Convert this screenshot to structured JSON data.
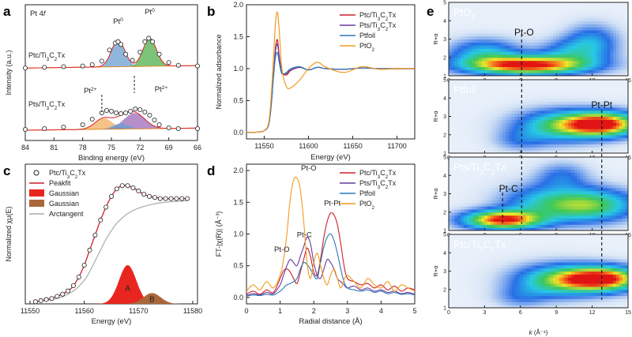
{
  "chart_data": [
    {
      "panel": "a",
      "type": "line",
      "title": "Pt 4f",
      "xlabel": "Binding energy (eV)",
      "ylabel": "Intensity (a.u.)",
      "xlim": [
        84,
        66
      ],
      "x_ticks": [
        "84",
        "81",
        "78",
        "75",
        "72",
        "69",
        "66"
      ],
      "annotations": [
        "Pt0",
        "Pt0",
        "Pt2+",
        "Pt2+"
      ],
      "series": [
        {
          "name": "Ptc/Ti3C2Tx",
          "x": [
            84,
            82,
            80,
            78,
            77,
            76,
            75.2,
            74.6,
            74.3,
            74.0,
            73.5,
            72.8,
            72.0,
            71.5,
            71.1,
            70.7,
            70.0,
            69,
            68,
            66
          ],
          "values": [
            0.52,
            0.53,
            0.54,
            0.55,
            0.57,
            0.62,
            0.78,
            0.88,
            0.9,
            0.86,
            0.72,
            0.63,
            0.75,
            0.9,
            0.95,
            0.9,
            0.72,
            0.6,
            0.56,
            0.55
          ]
        },
        {
          "name": "Pts/Ti3C2Tx",
          "x": [
            84,
            82,
            80,
            78,
            77,
            76,
            75.5,
            75,
            74.5,
            74,
            73.5,
            73,
            72.5,
            72,
            71.5,
            71,
            70.5,
            70,
            69,
            68,
            66
          ],
          "values": [
            0.04,
            0.05,
            0.07,
            0.1,
            0.17,
            0.25,
            0.28,
            0.27,
            0.25,
            0.24,
            0.25,
            0.27,
            0.3,
            0.29,
            0.26,
            0.22,
            0.16,
            0.1,
            0.06,
            0.05,
            0.05
          ]
        }
      ]
    },
    {
      "panel": "b",
      "type": "line",
      "xlabel": "Energy (eV)",
      "ylabel": "Normalized adsorbance",
      "xlim": [
        11530,
        11720
      ],
      "ylim": [
        -0.1,
        2.0
      ],
      "x_ticks": [
        "11550",
        "11600",
        "11650",
        "11700"
      ],
      "y_ticks": [
        "0.0",
        "0.5",
        "1.0",
        "1.5",
        "2.0"
      ],
      "legend": [
        "Ptc/Ti3C2Tx",
        "Pts/Ti3C2Tx",
        "Pt foil",
        "PtO2"
      ],
      "legend_placement": "top-right",
      "x": [
        11530,
        11545,
        11550,
        11555,
        11558,
        11561,
        11563,
        11565,
        11567,
        11570,
        11575,
        11580,
        11590,
        11600,
        11610,
        11620,
        11640,
        11660,
        11680,
        11700,
        11720
      ],
      "series": [
        {
          "name": "Ptc/Ti3C2Tx",
          "values": [
            0.0,
            0.01,
            0.03,
            0.12,
            0.45,
            1.0,
            1.35,
            1.45,
            1.2,
            0.95,
            0.9,
            0.97,
            1.02,
            0.98,
            1.02,
            1.0,
            0.99,
            1.01,
            1.0,
            1.0,
            1.0
          ]
        },
        {
          "name": "Pts/Ti3C2Tx",
          "values": [
            0.0,
            0.01,
            0.03,
            0.12,
            0.45,
            1.0,
            1.3,
            1.38,
            1.18,
            0.95,
            0.92,
            0.98,
            1.02,
            0.98,
            1.02,
            1.0,
            0.99,
            1.01,
            1.0,
            1.0,
            1.0
          ]
        },
        {
          "name": "Pt foil",
          "values": [
            0.0,
            0.01,
            0.03,
            0.12,
            0.45,
            0.95,
            1.2,
            1.25,
            1.1,
            0.92,
            0.94,
            1.0,
            1.03,
            0.98,
            1.02,
            1.0,
            0.99,
            1.01,
            1.0,
            1.0,
            1.0
          ]
        },
        {
          "name": "PtO2",
          "values": [
            0.0,
            0.01,
            0.03,
            0.15,
            0.6,
            1.3,
            1.75,
            1.88,
            1.6,
            1.0,
            0.72,
            0.7,
            0.82,
            1.0,
            1.1,
            1.02,
            0.94,
            1.03,
            0.99,
            1.0,
            1.0
          ]
        }
      ]
    },
    {
      "panel": "c",
      "type": "line",
      "xlabel": "Energy (eV)",
      "ylabel": "Normalized χμ(E)",
      "xlim": [
        11550,
        11580
      ],
      "ylim": [
        0,
        1.3
      ],
      "x_ticks": [
        "11550",
        "11560",
        "11570",
        "11580"
      ],
      "legend": [
        "Ptc/Ti3C2Tx",
        "Peak fit",
        "Gaussian 1",
        "Gaussian 2",
        "Arctangent"
      ],
      "legend_placement": "top-left",
      "peak_labels": [
        "A",
        "B"
      ],
      "data_points": {
        "name": "Ptc/Ti3C2Tx",
        "x": [
          11551,
          11552,
          11553,
          11554,
          11555,
          11556,
          11557,
          11558,
          11559,
          11560,
          11561,
          11562,
          11563,
          11564,
          11565,
          11566,
          11567,
          11568,
          11569,
          11570,
          11571,
          11572,
          11573,
          11574,
          11575,
          11576,
          11577,
          11578,
          11579
        ],
        "values": [
          0.02,
          0.03,
          0.04,
          0.05,
          0.07,
          0.09,
          0.12,
          0.17,
          0.25,
          0.36,
          0.5,
          0.64,
          0.78,
          0.9,
          1.0,
          1.07,
          1.1,
          1.1,
          1.08,
          1.05,
          1.02,
          1.0,
          0.99,
          0.98,
          0.98,
          0.98,
          0.98,
          0.98,
          0.98
        ]
      },
      "peak_fit": {
        "name": "Peak fit",
        "x": [
          11551,
          11553,
          11555,
          11557,
          11558,
          11559,
          11560,
          11561,
          11562,
          11563,
          11564,
          11565,
          11566,
          11567,
          11568,
          11569,
          11570,
          11571,
          11572,
          11573,
          11575,
          11577,
          11579
        ],
        "values": [
          0.02,
          0.04,
          0.07,
          0.12,
          0.17,
          0.25,
          0.36,
          0.5,
          0.64,
          0.78,
          0.9,
          1.0,
          1.07,
          1.1,
          1.1,
          1.08,
          1.05,
          1.02,
          1.0,
          0.99,
          0.98,
          0.98,
          0.98
        ]
      },
      "arctangent": {
        "name": "Arctangent",
        "x": [
          11551,
          11555,
          11558,
          11560,
          11561,
          11562,
          11563,
          11564,
          11565,
          11566,
          11568,
          11570,
          11572,
          11574,
          11576,
          11579
        ],
        "values": [
          0.02,
          0.05,
          0.12,
          0.22,
          0.3,
          0.4,
          0.5,
          0.6,
          0.68,
          0.75,
          0.84,
          0.89,
          0.92,
          0.94,
          0.95,
          0.96
        ]
      },
      "gaussian_1": {
        "name": "Gaussian 1",
        "center": 11568,
        "amplitude": 0.36,
        "sigma": 1.6,
        "color": "#e8261f"
      },
      "gaussian_2": {
        "name": "Gaussian 2",
        "center": 11572.5,
        "amplitude": 0.1,
        "sigma": 1.6,
        "color": "#a9673a"
      }
    },
    {
      "panel": "d",
      "type": "line",
      "xlabel": "Radial distance (Å)",
      "ylabel": "FT-|χ(R)| (Å⁻³)",
      "xlim": [
        0,
        5
      ],
      "ylim": [
        -0.1,
        2.1
      ],
      "x_ticks": [
        "0",
        "1",
        "2",
        "3",
        "4",
        "5"
      ],
      "y_ticks": [
        "0.0",
        "0.5",
        "1.0",
        "1.5",
        "2.0"
      ],
      "annotations": [
        "Pt-O",
        "Pt-O",
        "Pt-C",
        "Pt-Pt"
      ],
      "legend": [
        "Ptc/Ti3C2Tx",
        "Pts/Ti3C2Tx",
        "Pt foil",
        "PtO2"
      ],
      "legend_placement": "top-right",
      "x": [
        0,
        0.2,
        0.4,
        0.6,
        0.8,
        1.0,
        1.1,
        1.2,
        1.3,
        1.4,
        1.5,
        1.6,
        1.7,
        1.8,
        1.9,
        2.0,
        2.1,
        2.2,
        2.3,
        2.4,
        2.5,
        2.6,
        2.7,
        2.8,
        2.9,
        3.0,
        3.2,
        3.4,
        3.6,
        3.8,
        4.0,
        4.2,
        4.4,
        4.6,
        4.8,
        5.0
      ],
      "series": [
        {
          "name": "Ptc/Ti3C2Tx",
          "values": [
            0.05,
            0.1,
            0.05,
            0.12,
            0.08,
            0.3,
            0.42,
            0.45,
            0.4,
            0.3,
            0.22,
            0.4,
            0.6,
            0.78,
            0.65,
            0.4,
            0.35,
            0.6,
            0.95,
            1.2,
            1.33,
            1.3,
            1.15,
            0.85,
            0.5,
            0.3,
            0.25,
            0.2,
            0.22,
            0.15,
            0.2,
            0.12,
            0.18,
            0.1,
            0.15,
            0.12
          ]
        },
        {
          "name": "Pts/Ti3C2Tx",
          "values": [
            0.03,
            0.06,
            0.04,
            0.08,
            0.06,
            0.2,
            0.35,
            0.5,
            0.6,
            0.55,
            0.5,
            0.65,
            0.8,
            0.95,
            0.85,
            0.55,
            0.35,
            0.3,
            0.45,
            0.6,
            0.55,
            0.45,
            0.3,
            0.25,
            0.2,
            0.15,
            0.18,
            0.12,
            0.15,
            0.1,
            0.12,
            0.08,
            0.1,
            0.06,
            0.08,
            0.05
          ]
        },
        {
          "name": "Pt foil",
          "values": [
            0.02,
            0.04,
            0.03,
            0.05,
            0.04,
            0.1,
            0.15,
            0.2,
            0.22,
            0.25,
            0.3,
            0.45,
            0.55,
            0.52,
            0.45,
            0.35,
            0.3,
            0.55,
            0.8,
            0.95,
            1.0,
            0.9,
            0.7,
            0.45,
            0.25,
            0.15,
            0.12,
            0.1,
            0.12,
            0.08,
            0.1,
            0.06,
            0.08,
            0.05,
            0.06,
            0.04
          ]
        },
        {
          "name": "PtO2",
          "values": [
            0.1,
            0.2,
            0.12,
            0.25,
            0.15,
            0.35,
            0.6,
            1.0,
            1.55,
            1.85,
            1.88,
            1.7,
            1.2,
            0.55,
            0.3,
            0.55,
            0.7,
            0.5,
            0.3,
            0.2,
            0.35,
            0.45,
            0.3,
            0.15,
            0.28,
            0.35,
            0.25,
            0.15,
            0.3,
            0.2,
            0.15,
            0.25,
            0.1,
            0.2,
            0.15,
            0.1
          ]
        }
      ]
    },
    {
      "panel": "e",
      "type": "heatmap",
      "xlabel": "k (Å⁻¹)",
      "ylabel": "R+α",
      "xlim": [
        0,
        15
      ],
      "ylim": [
        1,
        5
      ],
      "x_ticks": [
        "0",
        "3",
        "6",
        "9",
        "12",
        "15"
      ],
      "y_ticks": [
        "1",
        "2",
        "3",
        "4",
        "5"
      ],
      "maps": [
        {
          "title": "PtO2",
          "annotation": "Pt-O",
          "blobs": [
            {
              "k": 6.5,
              "r": 1.6,
              "sk": 3.5,
              "sr": 0.35,
              "a": 1.0
            },
            {
              "k": 3,
              "r": 2.3,
              "sk": 2,
              "sr": 0.5,
              "a": 0.35
            },
            {
              "k": 10.5,
              "r": 2.3,
              "sk": 2,
              "sr": 0.5,
              "a": 0.3
            },
            {
              "k": 12,
              "r": 3,
              "sk": 1.5,
              "sr": 0.6,
              "a": 0.25
            }
          ]
        },
        {
          "title": "Pt foil",
          "annotation": "Pt-Pt",
          "blobs": [
            {
              "k": 12.8,
              "r": 2.6,
              "sk": 2.2,
              "sr": 0.45,
              "a": 1.0
            },
            {
              "k": 9,
              "r": 2.5,
              "sk": 2.5,
              "sr": 0.6,
              "a": 0.45
            },
            {
              "k": 6,
              "r": 1.7,
              "sk": 1.5,
              "sr": 0.4,
              "a": 0.15
            }
          ]
        },
        {
          "title": "Pts/Ti3C2Tx",
          "annotation": "Pt-C",
          "blobs": [
            {
              "k": 4.5,
              "r": 1.6,
              "sk": 2.2,
              "sr": 0.35,
              "a": 0.95
            },
            {
              "k": 12,
              "r": 2.4,
              "sk": 2.5,
              "sr": 0.6,
              "a": 0.55
            },
            {
              "k": 8,
              "r": 2.5,
              "sk": 2.5,
              "sr": 0.7,
              "a": 0.35
            },
            {
              "k": 9.5,
              "r": 4.0,
              "sk": 1.5,
              "sr": 0.5,
              "a": 0.2
            }
          ]
        },
        {
          "title": "Ptc/Ti3C2Tx",
          "annotation": "",
          "blobs": [
            {
              "k": 12.8,
              "r": 2.6,
              "sk": 2.3,
              "sr": 0.45,
              "a": 1.0
            },
            {
              "k": 9,
              "r": 2.5,
              "sk": 2.5,
              "sr": 0.6,
              "a": 0.5
            },
            {
              "k": 6,
              "r": 1.6,
              "sk": 1.5,
              "sr": 0.4,
              "a": 0.15
            }
          ]
        }
      ]
    }
  ],
  "panel_labels": [
    "a",
    "b",
    "c",
    "d",
    "e"
  ],
  "colors": {
    "ptc": "#c9202a",
    "pts": "#6a3a9e",
    "pt_foil": "#2a78b8",
    "pto2": "#f29b1c"
  }
}
